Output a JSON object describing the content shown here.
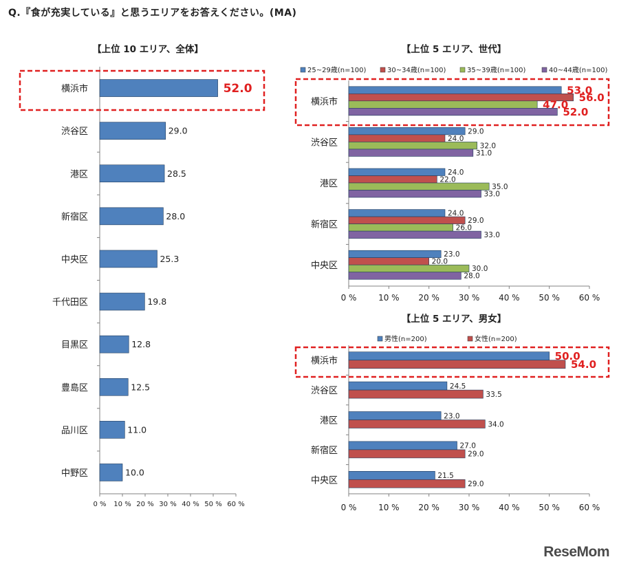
{
  "question": "Q.『食が充実している』と思うエリアをお答えください。(MA)",
  "watermark": "ReseMom",
  "colors": {
    "blue": "#4f81bd",
    "red": "#c0504d",
    "green": "#9bbb59",
    "purple": "#8064a2",
    "highlight": "#e02020",
    "axis": "#808080"
  },
  "chart_data": [
    {
      "id": "overall",
      "type": "bar",
      "orientation": "horizontal",
      "title": "【上位 10 エリア、全体】",
      "categories": [
        "横浜市",
        "渋谷区",
        "港区",
        "新宿区",
        "中央区",
        "千代田区",
        "目黒区",
        "豊島区",
        "品川区",
        "中野区"
      ],
      "series": [
        {
          "name": "全体",
          "values": [
            52.0,
            29.0,
            28.5,
            28.0,
            25.3,
            19.8,
            12.8,
            12.5,
            11.0,
            10.0
          ]
        }
      ],
      "value_labels": [
        "52.0",
        "29.0",
        "28.5",
        "28.0",
        "25.3",
        "19.8",
        "12.8",
        "12.5",
        "11.0",
        "10.0"
      ],
      "xlim": [
        0,
        60
      ],
      "xticks": [
        "0 %",
        "10 %",
        "20 %",
        "30 %",
        "40 %",
        "50 %",
        "60 %"
      ],
      "highlight_category": "横浜市"
    },
    {
      "id": "generation",
      "type": "bar",
      "orientation": "horizontal",
      "title": "【上位 5 エリア、世代】",
      "categories": [
        "横浜市",
        "渋谷区",
        "港区",
        "新宿区",
        "中央区"
      ],
      "series": [
        {
          "name": "25~29歳(n=100)",
          "color": "blue",
          "values": [
            53.0,
            29.0,
            24.0,
            24.0,
            23.0
          ],
          "labels": [
            "53.0",
            "29.0",
            "24.0",
            "24.0",
            "23.0"
          ]
        },
        {
          "name": "30~34歳(n=100)",
          "color": "red",
          "values": [
            56.0,
            24.0,
            22.0,
            29.0,
            20.0
          ],
          "labels": [
            "56.0",
            "24.0",
            "22.0",
            "29.0",
            "20.0"
          ]
        },
        {
          "name": "35~39歳(n=100)",
          "color": "green",
          "values": [
            47.0,
            32.0,
            35.0,
            26.0,
            30.0
          ],
          "labels": [
            "47.0",
            "32.0",
            "35.0",
            "26.0",
            "30.0"
          ]
        },
        {
          "name": "40~44歳(n=100)",
          "color": "purple",
          "values": [
            52.0,
            31.0,
            33.0,
            33.0,
            28.0
          ],
          "labels": [
            "52.0",
            "31.0",
            "33.0",
            "33.0",
            "28.0"
          ]
        }
      ],
      "xlim": [
        0,
        60
      ],
      "xticks": [
        "0 %",
        "10 %",
        "20 %",
        "30 %",
        "40 %",
        "50 %",
        "60 %"
      ],
      "legend": "top",
      "highlight_category": "横浜市"
    },
    {
      "id": "gender",
      "type": "bar",
      "orientation": "horizontal",
      "title": "【上位 5 エリア、男女】",
      "categories": [
        "横浜市",
        "渋谷区",
        "港区",
        "新宿区",
        "中央区"
      ],
      "series": [
        {
          "name": "男性(n=200)",
          "color": "blue",
          "values": [
            50.0,
            24.5,
            23.0,
            27.0,
            21.5
          ],
          "labels": [
            "50.0",
            "24.5",
            "23.0",
            "27.0",
            "21.5"
          ]
        },
        {
          "name": "女性(n=200)",
          "color": "red",
          "values": [
            54.0,
            33.5,
            34.0,
            29.0,
            29.0
          ],
          "labels": [
            "54.0",
            "33.5",
            "34.0",
            "29.0",
            "29.0"
          ]
        }
      ],
      "xlim": [
        0,
        60
      ],
      "xticks": [
        "0 %",
        "10 %",
        "20 %",
        "30 %",
        "40 %",
        "50 %",
        "60 %"
      ],
      "legend": "top",
      "highlight_category": "横浜市"
    }
  ]
}
